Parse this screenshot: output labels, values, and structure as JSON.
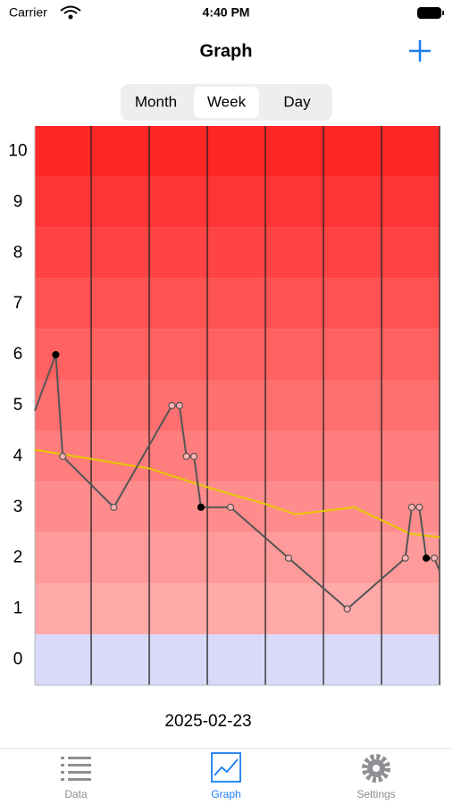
{
  "status_bar": {
    "carrier": "Carrier",
    "time": "4:40 PM"
  },
  "nav": {
    "title": "Graph"
  },
  "segments": {
    "items": [
      "Month",
      "Week",
      "Day"
    ],
    "selected": 1
  },
  "chart_data": {
    "type": "line",
    "xlim": [
      0.03,
      7
    ],
    "xticks": [
      1,
      2,
      3,
      4,
      5,
      6,
      7
    ],
    "ylim": [
      -0.5,
      10.5
    ],
    "yticks": [
      0,
      1,
      2,
      3,
      4,
      5,
      6,
      7,
      8,
      9,
      10
    ],
    "band_colors": {
      "high": "#ff2626",
      "low": "#ffa9a9",
      "zero": "#d9d9fa"
    },
    "series": [
      {
        "color": "#555555",
        "x": [
          0.03,
          0.39,
          0.51,
          1.39,
          2.39,
          2.52,
          2.64,
          2.77,
          2.89,
          3.4,
          4.4,
          5.41,
          6.41,
          6.52,
          6.65,
          6.77,
          6.91,
          7.0
        ],
        "values": [
          4.9,
          6,
          4,
          3,
          5,
          5,
          4,
          4,
          3,
          3,
          2,
          1,
          2,
          3,
          3,
          2,
          2,
          1.75
        ],
        "markers": [
          "none",
          "filled",
          "open",
          "open",
          "open",
          "open",
          "open",
          "open",
          "filled",
          "open",
          "open",
          "open",
          "open",
          "open",
          "open",
          "filled",
          "open",
          "none"
        ]
      },
      {
        "color": "#e6c800",
        "x": [
          0.03,
          1.0,
          2.01,
          3.01,
          4.01,
          4.52,
          5.53,
          6.49,
          7.0
        ],
        "values": [
          4.13,
          3.95,
          3.76,
          3.39,
          3.06,
          2.86,
          3.0,
          2.48,
          2.41
        ]
      }
    ]
  },
  "date_label": "2025-02-23",
  "tabs": {
    "items": [
      "Data",
      "Graph",
      "Settings"
    ],
    "selected": 1
  }
}
